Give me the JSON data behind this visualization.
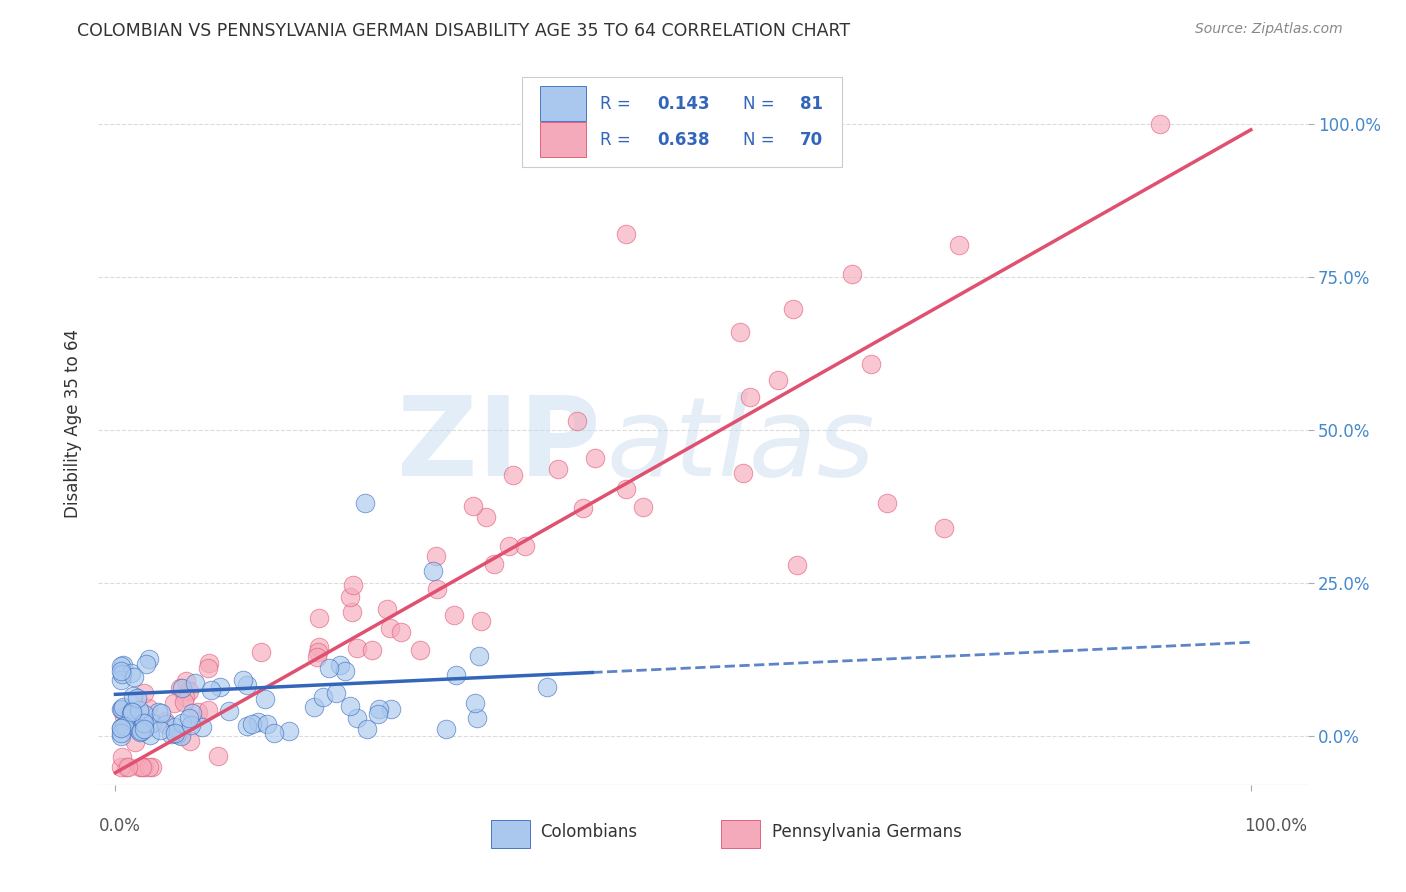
{
  "title": "COLOMBIAN VS PENNSYLVANIA GERMAN DISABILITY AGE 35 TO 64 CORRELATION CHART",
  "source": "Source: ZipAtlas.com",
  "ylabel": "Disability Age 35 to 64",
  "colombian_color": "#aac8ee",
  "penn_german_color": "#f5aabb",
  "colombian_line_color": "#3366bb",
  "penn_german_line_color": "#e05070",
  "legend_text_color": "#3366bb",
  "R_colombian": 0.143,
  "N_colombian": 81,
  "R_penn_german": 0.638,
  "N_penn_german": 70,
  "legend_label_colombian": "Colombians",
  "legend_label_penn_german": "Pennsylvania Germans",
  "background_color": "#ffffff",
  "grid_color": "#cccccc",
  "right_yaxis_color": "#4488cc",
  "title_color": "#333333",
  "source_color": "#888888"
}
